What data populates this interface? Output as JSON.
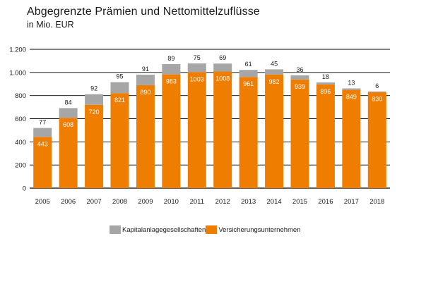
{
  "chart_data": {
    "type": "bar",
    "stacked": true,
    "title": "Abgegrenzte Prämien und Nettomittelzuflüsse",
    "subtitle": "in Mio. EUR",
    "categories": [
      "2005",
      "2006",
      "2007",
      "2008",
      "2009",
      "2010",
      "2011",
      "2012",
      "2013",
      "2014",
      "2015",
      "2016",
      "2017",
      "2018"
    ],
    "series": [
      {
        "name": "Versicherungsunternehmen",
        "color": "#ee7d00",
        "values": [
          443,
          608,
          720,
          821,
          890,
          983,
          1003,
          1008,
          961,
          982,
          939,
          896,
          849,
          830
        ]
      },
      {
        "name": "Kapitalanlagegesellschaften",
        "color": "#a6a6a6",
        "values": [
          77,
          84,
          92,
          95,
          91,
          89,
          75,
          69,
          61,
          45,
          36,
          18,
          13,
          6
        ]
      }
    ],
    "ylim": [
      0,
      1200
    ],
    "yticks": [
      0,
      200,
      400,
      600,
      800,
      1000,
      1200
    ],
    "ytick_labels": [
      "0",
      "200",
      "400",
      "600",
      "800",
      "1.000",
      "1.200"
    ],
    "grid": true,
    "legend_position": "bottom"
  }
}
